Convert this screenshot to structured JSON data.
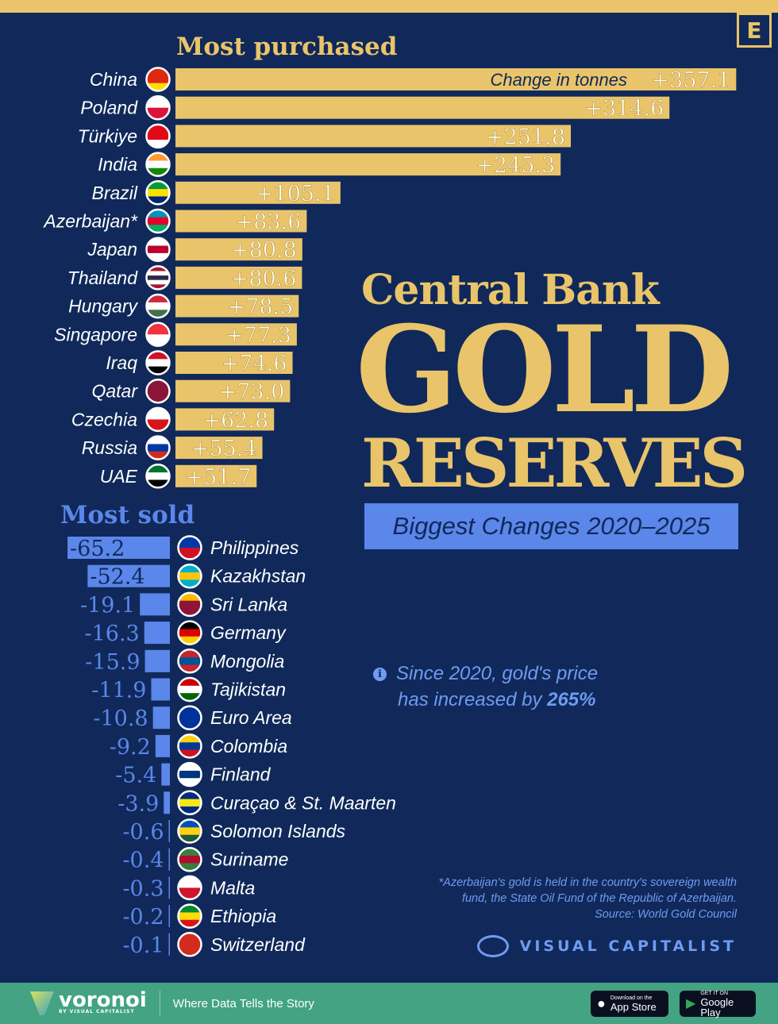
{
  "brand_mark": "E",
  "title": {
    "line1": "Central Bank",
    "line2": "GOLD",
    "line3": "RESERVES",
    "subtitle": "Biggest Changes 2020–2025"
  },
  "note": {
    "icon": "info-icon",
    "text_before": "Since 2020, gold's price",
    "text_mid": "has increased by ",
    "highlight": "265%"
  },
  "footnote": {
    "line1": "*Azerbaijan's gold is held in the country's sovereign wealth",
    "line2": "fund, the State Oil Fund of the Republic of Azerbaijan.",
    "source": "Source: World Gold Council"
  },
  "publisher": "VISUAL CAPITALIST",
  "footer": {
    "brand": "voronoi",
    "brand_sub": "BY VISUAL CAPITALIST",
    "tagline": "Where Data Tells the Story",
    "app_store_small": "Download on the",
    "app_store": "App Store",
    "google_small": "GET IT ON",
    "google": "Google Play"
  },
  "colors": {
    "background": "#10295a",
    "gold": "#e9c46a",
    "blue": "#5b86ea",
    "footer": "#43a382"
  },
  "chart_data": [
    {
      "type": "bar",
      "orientation": "horizontal",
      "title": "Most purchased",
      "annotation": "Change in tonnes",
      "categories": [
        "China",
        "Poland",
        "Türkiye",
        "India",
        "Brazil",
        "Azerbaijan*",
        "Japan",
        "Thailand",
        "Hungary",
        "Singapore",
        "Iraq",
        "Qatar",
        "Czechia",
        "Russia",
        "UAE"
      ],
      "values": [
        357.1,
        314.6,
        251.8,
        245.3,
        105.1,
        83.6,
        80.8,
        80.6,
        78.5,
        77.3,
        74.6,
        73.0,
        62.8,
        55.4,
        51.7
      ],
      "labels": [
        "+357.1",
        "+314.6",
        "+251.8",
        "+245.3",
        "+105.1",
        "+83.6",
        "+80.8",
        "+80.6",
        "+78.5",
        "+77.3",
        "+74.6",
        "+73.0",
        "+62.8",
        "+55.4",
        "+51.7"
      ]
    },
    {
      "type": "bar",
      "orientation": "horizontal",
      "title": "Most sold",
      "categories": [
        "Philippines",
        "Kazakhstan",
        "Sri Lanka",
        "Germany",
        "Mongolia",
        "Tajikistan",
        "Euro Area",
        "Colombia",
        "Finland",
        "Curaçao & St. Maarten",
        "Solomon Islands",
        "Suriname",
        "Malta",
        "Ethiopia",
        "Switzerland"
      ],
      "values": [
        -65.2,
        -52.4,
        -19.1,
        -16.3,
        -15.9,
        -11.9,
        -10.8,
        -9.2,
        -5.4,
        -3.9,
        -0.6,
        -0.4,
        -0.3,
        -0.2,
        -0.1
      ],
      "labels": [
        "-65.2",
        "-52.4",
        "-19.1",
        "-16.3",
        "-15.9",
        "-11.9",
        "-10.8",
        "-9.2",
        "-5.4",
        "-3.9",
        "-0.6",
        "-0.4",
        "-0.3",
        "-0.2",
        "-0.1"
      ]
    }
  ],
  "flags": {
    "China": [
      "#de2910",
      "#de2910",
      "#ffde00"
    ],
    "Poland": [
      "#fff",
      "#dc143c"
    ],
    "Türkiye": [
      "#e30a17",
      "#e30a17",
      "#fff"
    ],
    "India": [
      "#ff9933",
      "#fff",
      "#138808"
    ],
    "Brazil": [
      "#009c3b",
      "#ffdf00",
      "#002776"
    ],
    "Azerbaijan*": [
      "#0092bc",
      "#e4002b",
      "#00af66"
    ],
    "Japan": [
      "#fff",
      "#bc002d",
      "#fff"
    ],
    "Thailand": [
      "#a51931",
      "#fff",
      "#2d2a4a",
      "#fff",
      "#a51931"
    ],
    "Hungary": [
      "#cd2a3e",
      "#fff",
      "#436f4d"
    ],
    "Singapore": [
      "#ef3340",
      "#fff"
    ],
    "Iraq": [
      "#ce1126",
      "#fff",
      "#000"
    ],
    "Qatar": [
      "#8a1538",
      "#8a1538",
      "#8a1538"
    ],
    "Czechia": [
      "#fff",
      "#d7141a"
    ],
    "Russia": [
      "#fff",
      "#0039a6",
      "#d52b1e"
    ],
    "UAE": [
      "#00732f",
      "#fff",
      "#000"
    ],
    "Philippines": [
      "#0038a8",
      "#ce1126"
    ],
    "Kazakhstan": [
      "#00afca",
      "#fec50c",
      "#00afca"
    ],
    "Sri Lanka": [
      "#ffb700",
      "#8d153a",
      "#8d153a"
    ],
    "Germany": [
      "#000",
      "#dd0000",
      "#ffce00"
    ],
    "Mongolia": [
      "#c4272f",
      "#015197",
      "#c4272f"
    ],
    "Tajikistan": [
      "#cc0000",
      "#fff",
      "#006600"
    ],
    "Euro Area": [
      "#003399",
      "#003399",
      "#003399"
    ],
    "Colombia": [
      "#fcd116",
      "#003893",
      "#ce1126"
    ],
    "Finland": [
      "#fff",
      "#003580",
      "#fff"
    ],
    "Curaçao & St. Maarten": [
      "#002b7f",
      "#f9e814",
      "#002b7f"
    ],
    "Solomon Islands": [
      "#0051ba",
      "#fcd116",
      "#215b33"
    ],
    "Suriname": [
      "#377e3f",
      "#b40a2d",
      "#377e3f"
    ],
    "Malta": [
      "#fff",
      "#cf142b"
    ],
    "Ethiopia": [
      "#078930",
      "#fcdd09",
      "#da121a"
    ],
    "Switzerland": [
      "#d52b1e",
      "#d52b1e",
      "#d52b1e"
    ]
  }
}
